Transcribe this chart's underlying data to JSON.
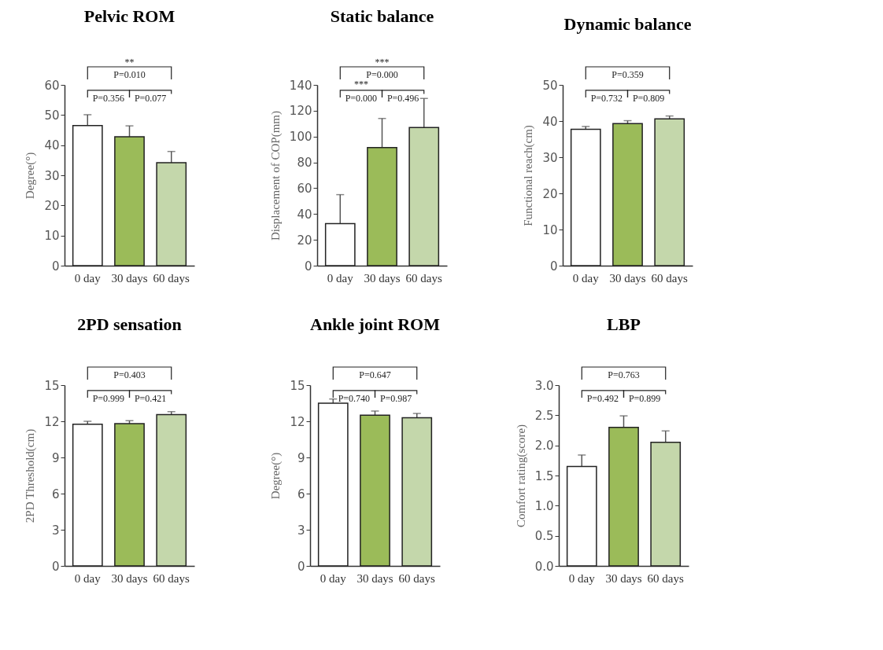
{
  "chart_data": [
    {
      "type": "bar",
      "title": "Pelvic ROM",
      "ylabel": "Degree(°)",
      "categories": [
        "0 day",
        "30 days",
        "60 days"
      ],
      "values": [
        46.5,
        42.8,
        34.2
      ],
      "errors": [
        3.6,
        3.6,
        3.7
      ],
      "colors": [
        "#ffffff",
        "#9bbb59",
        "#c4d7ab"
      ],
      "ylim": [
        0,
        60
      ],
      "yticks": [
        0,
        10,
        20,
        30,
        40,
        50,
        60
      ],
      "annotations": [
        "P=0.010",
        "P=0.356",
        "P=0.077",
        "**"
      ]
    },
    {
      "type": "bar",
      "title": "Static balance",
      "ylabel": "Displacement of COP(mm)",
      "categories": [
        "0 day",
        "30 days",
        "60 days"
      ],
      "values": [
        32.5,
        91.5,
        107
      ],
      "errors": [
        22.5,
        22.5,
        22.5
      ],
      "colors": [
        "#ffffff",
        "#9bbb59",
        "#c4d7ab"
      ],
      "ylim": [
        0,
        140
      ],
      "yticks": [
        0,
        20,
        40,
        60,
        80,
        100,
        120,
        140
      ],
      "annotations": [
        "P=0.000",
        "P=0.000",
        "P=0.496",
        "***",
        "***"
      ]
    },
    {
      "type": "bar",
      "title": "Dynamic balance",
      "ylabel": "Functional reach(cm)",
      "categories": [
        "0 day",
        "30 days",
        "60 days"
      ],
      "values": [
        37.7,
        39.3,
        40.6
      ],
      "errors": [
        0.8,
        0.8,
        0.8
      ],
      "colors": [
        "#ffffff",
        "#9bbb59",
        "#c4d7ab"
      ],
      "ylim": [
        0,
        50
      ],
      "yticks": [
        0,
        10,
        20,
        30,
        40,
        50
      ],
      "annotations": [
        "P=0.359",
        "P=0.732",
        "P=0.809"
      ]
    },
    {
      "type": "bar",
      "title": "2PD sensation",
      "ylabel": "2PD Threshold(cm)",
      "categories": [
        "0 day",
        "30 days",
        "60 days"
      ],
      "values": [
        11.75,
        11.8,
        12.55
      ],
      "errors": [
        0.25,
        0.25,
        0.25
      ],
      "colors": [
        "#ffffff",
        "#9bbb59",
        "#c4d7ab"
      ],
      "ylim": [
        0,
        15
      ],
      "yticks": [
        0,
        3,
        6,
        9,
        12,
        15
      ],
      "annotations": [
        "P=0.403",
        "P=0.999",
        "P=0.421"
      ]
    },
    {
      "type": "bar",
      "title": "Ankle joint ROM",
      "ylabel": "Degree(°)",
      "categories": [
        "0 day",
        "30 days",
        "60 days"
      ],
      "values": [
        13.5,
        12.5,
        12.3
      ],
      "errors": [
        0.35,
        0.35,
        0.35
      ],
      "colors": [
        "#ffffff",
        "#9bbb59",
        "#c4d7ab"
      ],
      "ylim": [
        0,
        15
      ],
      "yticks": [
        0,
        3,
        6,
        9,
        12,
        15
      ],
      "annotations": [
        "P=0.647",
        "P=0.740",
        "P=0.987"
      ]
    },
    {
      "type": "bar",
      "title": "LBP",
      "ylabel": "Comfort rating(score)",
      "categories": [
        "0 day",
        "30 days",
        "60 days"
      ],
      "values": [
        1.65,
        2.3,
        2.05
      ],
      "errors": [
        0.19,
        0.19,
        0.19
      ],
      "colors": [
        "#ffffff",
        "#9bbb59",
        "#c4d7ab"
      ],
      "ylim": [
        0,
        3
      ],
      "yticks": [
        {
          "value": 0,
          "label": "0.0"
        },
        0.5,
        {
          "value": 1,
          "label": "1.0"
        },
        1.5,
        {
          "value": 2,
          "label": "2.0"
        },
        2.5,
        {
          "value": 3,
          "label": "3.0"
        }
      ],
      "annotations": [
        "P=0.763",
        "P=0.492",
        "P=0.899"
      ]
    }
  ]
}
